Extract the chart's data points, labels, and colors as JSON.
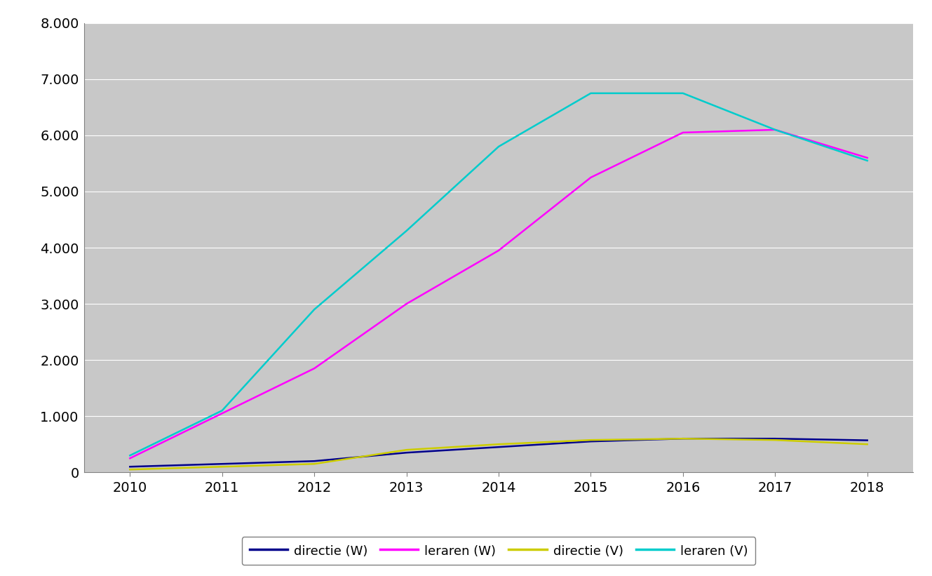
{
  "years": [
    2010,
    2011,
    2012,
    2013,
    2014,
    2015,
    2016,
    2017,
    2018
  ],
  "directie_W": [
    100,
    150,
    200,
    350,
    450,
    550,
    600,
    600,
    570
  ],
  "leraren_W": [
    250,
    1050,
    1850,
    3000,
    3950,
    5250,
    6050,
    6100,
    5600
  ],
  "directie_V": [
    50,
    100,
    150,
    400,
    500,
    575,
    600,
    575,
    500
  ],
  "leraren_V": [
    300,
    1100,
    2900,
    4300,
    5800,
    6750,
    6750,
    6100,
    5550
  ],
  "colors": {
    "directie_W": "#00008B",
    "leraren_W": "#FF00FF",
    "directie_V": "#CCCC00",
    "leraren_V": "#00CCCC"
  },
  "legend_labels": [
    "directie (W)",
    "leraren (W)",
    "directie (V)",
    "leraren (V)"
  ],
  "ylim": [
    0,
    8000
  ],
  "yticks": [
    0,
    1000,
    2000,
    3000,
    4000,
    5000,
    6000,
    7000,
    8000
  ],
  "ytick_labels": [
    "0",
    "1.000",
    "2.000",
    "3.000",
    "4.000",
    "5.000",
    "6.000",
    "7.000",
    "8.000"
  ],
  "xticks": [
    2010,
    2011,
    2012,
    2013,
    2014,
    2015,
    2016,
    2017,
    2018
  ],
  "xlim": [
    2009.5,
    2018.5
  ],
  "plot_bg_color": "#C8C8C8",
  "fig_bg_color": "#FFFFFF",
  "grid_color": "#FFFFFF",
  "line_width": 1.8,
  "tick_fontsize": 14,
  "legend_fontsize": 13
}
